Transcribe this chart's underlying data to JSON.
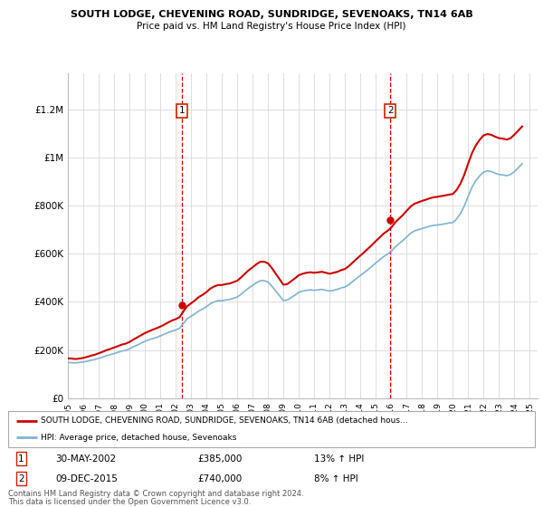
{
  "title": "SOUTH LODGE, CHEVENING ROAD, SUNDRIDGE, SEVENOAKS, TN14 6AB",
  "subtitle": "Price paid vs. HM Land Registry's House Price Index (HPI)",
  "ylabel_ticks": [
    "£0",
    "£200K",
    "£400K",
    "£600K",
    "£800K",
    "£1M",
    "£1.2M"
  ],
  "ytick_values": [
    0,
    200000,
    400000,
    600000,
    800000,
    1000000,
    1200000
  ],
  "ylim": [
    0,
    1350000
  ],
  "xlim_start": 1995.0,
  "xlim_end": 2025.5,
  "xticks": [
    1995,
    1996,
    1997,
    1998,
    1999,
    2000,
    2001,
    2002,
    2003,
    2004,
    2005,
    2006,
    2007,
    2008,
    2009,
    2010,
    2011,
    2012,
    2013,
    2014,
    2015,
    2016,
    2017,
    2018,
    2019,
    2020,
    2021,
    2022,
    2023,
    2024,
    2025
  ],
  "purchase1_x": 2002.41,
  "purchase1_y": 385000,
  "purchase1_label": "1",
  "purchase1_date": "30-MAY-2002",
  "purchase1_price": "£385,000",
  "purchase1_hpi": "13% ↑ HPI",
  "purchase2_x": 2015.94,
  "purchase2_y": 740000,
  "purchase2_label": "2",
  "purchase2_date": "09-DEC-2015",
  "purchase2_price": "£740,000",
  "purchase2_hpi": "8% ↑ HPI",
  "legend_line1": "SOUTH LODGE, CHEVENING ROAD, SUNDRIDGE, SEVENOAKS, TN14 6AB (detached hous…",
  "legend_line2": "HPI: Average price, detached house, Sevenoaks",
  "red_line_color": "#cc0000",
  "blue_line_color": "#7fb3d3",
  "marker_box_color": "#cc2200",
  "grid_color": "#dddddd",
  "background_color": "#ffffff",
  "footer_line1": "Contains HM Land Registry data © Crown copyright and database right 2024.",
  "footer_line2": "This data is licensed under the Open Government Licence v3.0.",
  "hpi_years": [
    1995.0,
    1995.25,
    1995.5,
    1995.75,
    1996.0,
    1996.25,
    1996.5,
    1996.75,
    1997.0,
    1997.25,
    1997.5,
    1997.75,
    1998.0,
    1998.25,
    1998.5,
    1998.75,
    1999.0,
    1999.25,
    1999.5,
    1999.75,
    2000.0,
    2000.25,
    2000.5,
    2000.75,
    2001.0,
    2001.25,
    2001.5,
    2001.75,
    2002.0,
    2002.25,
    2002.5,
    2002.75,
    2003.0,
    2003.25,
    2003.5,
    2003.75,
    2004.0,
    2004.25,
    2004.5,
    2004.75,
    2005.0,
    2005.25,
    2005.5,
    2005.75,
    2006.0,
    2006.25,
    2006.5,
    2006.75,
    2007.0,
    2007.25,
    2007.5,
    2007.75,
    2008.0,
    2008.25,
    2008.5,
    2008.75,
    2009.0,
    2009.25,
    2009.5,
    2009.75,
    2010.0,
    2010.25,
    2010.5,
    2010.75,
    2011.0,
    2011.25,
    2011.5,
    2011.75,
    2012.0,
    2012.25,
    2012.5,
    2012.75,
    2013.0,
    2013.25,
    2013.5,
    2013.75,
    2014.0,
    2014.25,
    2014.5,
    2014.75,
    2015.0,
    2015.25,
    2015.5,
    2015.75,
    2016.0,
    2016.25,
    2016.5,
    2016.75,
    2017.0,
    2017.25,
    2017.5,
    2017.75,
    2018.0,
    2018.25,
    2018.5,
    2018.75,
    2019.0,
    2019.25,
    2019.5,
    2019.75,
    2020.0,
    2020.25,
    2020.5,
    2020.75,
    2021.0,
    2021.25,
    2021.5,
    2021.75,
    2022.0,
    2022.25,
    2022.5,
    2022.75,
    2023.0,
    2023.25,
    2023.5,
    2023.75,
    2024.0,
    2024.25,
    2024.5
  ],
  "hpi_values": [
    148000,
    147000,
    146000,
    148000,
    150000,
    153000,
    157000,
    160000,
    165000,
    170000,
    176000,
    180000,
    185000,
    190000,
    195000,
    198000,
    204000,
    213000,
    220000,
    228000,
    236000,
    242000,
    247000,
    252000,
    258000,
    265000,
    272000,
    278000,
    283000,
    290000,
    310000,
    330000,
    340000,
    350000,
    362000,
    370000,
    380000,
    392000,
    400000,
    405000,
    405000,
    408000,
    410000,
    415000,
    420000,
    432000,
    445000,
    458000,
    468000,
    480000,
    488000,
    488000,
    482000,
    465000,
    445000,
    425000,
    405000,
    408000,
    418000,
    428000,
    440000,
    445000,
    448000,
    450000,
    448000,
    450000,
    452000,
    448000,
    445000,
    448000,
    452000,
    458000,
    462000,
    472000,
    485000,
    498000,
    510000,
    522000,
    535000,
    548000,
    562000,
    575000,
    588000,
    598000,
    610000,
    628000,
    642000,
    655000,
    670000,
    685000,
    695000,
    700000,
    705000,
    710000,
    715000,
    718000,
    720000,
    722000,
    725000,
    728000,
    730000,
    745000,
    768000,
    800000,
    840000,
    878000,
    905000,
    925000,
    940000,
    945000,
    942000,
    935000,
    930000,
    928000,
    925000,
    930000,
    942000,
    958000,
    975000
  ],
  "red_years": [
    1995.0,
    1995.25,
    1995.5,
    1995.75,
    1996.0,
    1996.25,
    1996.5,
    1996.75,
    1997.0,
    1997.25,
    1997.5,
    1997.75,
    1998.0,
    1998.25,
    1998.5,
    1998.75,
    1999.0,
    1999.25,
    1999.5,
    1999.75,
    2000.0,
    2000.25,
    2000.5,
    2000.75,
    2001.0,
    2001.25,
    2001.5,
    2001.75,
    2002.0,
    2002.25,
    2002.5,
    2002.75,
    2003.0,
    2003.25,
    2003.5,
    2003.75,
    2004.0,
    2004.25,
    2004.5,
    2004.75,
    2005.0,
    2005.25,
    2005.5,
    2005.75,
    2006.0,
    2006.25,
    2006.5,
    2006.75,
    2007.0,
    2007.25,
    2007.5,
    2007.75,
    2008.0,
    2008.25,
    2008.5,
    2008.75,
    2009.0,
    2009.25,
    2009.5,
    2009.75,
    2010.0,
    2010.25,
    2010.5,
    2010.75,
    2011.0,
    2011.25,
    2011.5,
    2011.75,
    2012.0,
    2012.25,
    2012.5,
    2012.75,
    2013.0,
    2013.25,
    2013.5,
    2013.75,
    2014.0,
    2014.25,
    2014.5,
    2014.75,
    2015.0,
    2015.25,
    2015.5,
    2015.75,
    2016.0,
    2016.25,
    2016.5,
    2016.75,
    2017.0,
    2017.25,
    2017.5,
    2017.75,
    2018.0,
    2018.25,
    2018.5,
    2018.75,
    2019.0,
    2019.25,
    2019.5,
    2019.75,
    2020.0,
    2020.25,
    2020.5,
    2020.75,
    2021.0,
    2021.25,
    2021.5,
    2021.75,
    2022.0,
    2022.25,
    2022.5,
    2022.75,
    2023.0,
    2023.25,
    2023.5,
    2023.75,
    2024.0,
    2024.25,
    2024.5
  ],
  "red_values": [
    165000,
    164000,
    162000,
    164000,
    167000,
    171000,
    176000,
    180000,
    186000,
    192000,
    199000,
    204000,
    210000,
    216000,
    222000,
    226000,
    233000,
    243000,
    252000,
    261000,
    270000,
    277000,
    284000,
    290000,
    297000,
    305000,
    314000,
    322000,
    328000,
    336000,
    360000,
    382000,
    394000,
    406000,
    420000,
    429000,
    441000,
    455000,
    464000,
    470000,
    470000,
    474000,
    476000,
    482000,
    488000,
    502000,
    517000,
    532000,
    544000,
    557000,
    567000,
    567000,
    560000,
    540000,
    517000,
    494000,
    471000,
    474000,
    486000,
    498000,
    511000,
    517000,
    521000,
    523000,
    521000,
    523000,
    525000,
    521000,
    517000,
    521000,
    525000,
    532000,
    537000,
    549000,
    564000,
    579000,
    593000,
    607000,
    622000,
    637000,
    653000,
    668000,
    684000,
    695000,
    709000,
    730000,
    746000,
    761000,
    779000,
    796000,
    808000,
    814000,
    820000,
    825000,
    831000,
    835000,
    837000,
    840000,
    843000,
    846000,
    849000,
    866000,
    893000,
    930000,
    977000,
    1020000,
    1052000,
    1075000,
    1093000,
    1098000,
    1095000,
    1087000,
    1081000,
    1079000,
    1075000,
    1081000,
    1096000,
    1113000,
    1130000
  ]
}
